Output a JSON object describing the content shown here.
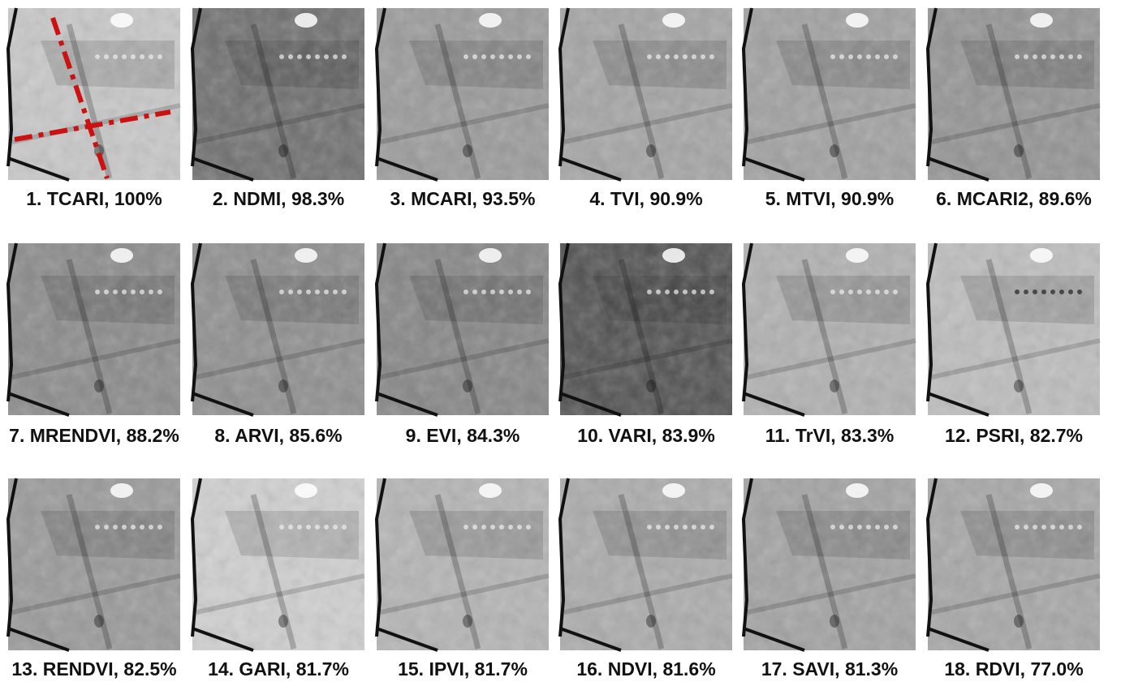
{
  "panels": [
    {
      "label": "1. TCARI, 100%"
    },
    {
      "label": "2. NDMI, 98.3%"
    },
    {
      "label": "3. MCARI, 93.5%"
    },
    {
      "label": "4. TVI, 90.9%"
    },
    {
      "label": "5. MTVI, 90.9%"
    },
    {
      "label": "6. MCARI2, 89.6%"
    },
    {
      "label": "7. MRENDVI, 88.2%"
    },
    {
      "label": "8. ARVI, 85.6%"
    },
    {
      "label": "9. EVI, 84.3%"
    },
    {
      "label": "10. VARI, 83.9%"
    },
    {
      "label": "11. TrVI, 83.3%"
    },
    {
      "label": "12. PSRI, 82.7%"
    },
    {
      "label": "13. RENDVI, 82.5%"
    },
    {
      "label": "14. GARI, 81.7%"
    },
    {
      "label": "15. IPVI, 81.7%"
    },
    {
      "label": "16. NDVI, 81.6%"
    },
    {
      "label": "17. SAVI, 81.3%"
    },
    {
      "label": "18. RDVI, 77.0%"
    }
  ]
}
